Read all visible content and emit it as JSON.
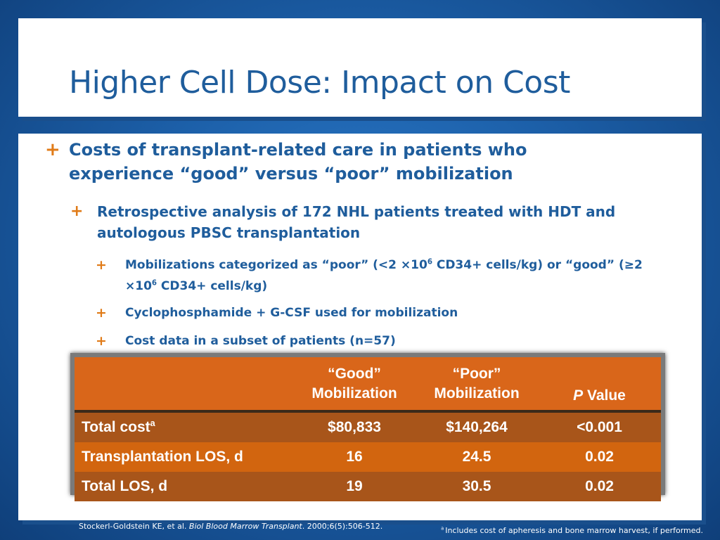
{
  "title": "Higher Cell Dose: Impact on Cost",
  "bullets": {
    "level1": "Costs of transplant-related care in patients who experience “good” versus “poor” mobilization",
    "level2": "Retrospective analysis of 172 NHL patients treated with HDT and autologous PBSC transplantation",
    "level3": {
      "mobilization_pre": "Mobilizations categorized as “poor” (<2 ×10",
      "mobilization_exp1": "6",
      "mobilization_mid": " CD34+ cells/kg)  or “good” (≥2 ×10",
      "mobilization_exp2": "6",
      "mobilization_post": " CD34+ cells/kg)",
      "cyclophosphamide": "Cyclophosphamide + G-CSF used for mobilization",
      "cost_subset": "Cost data in a subset of patients (n=57)"
    }
  },
  "table": {
    "headers": {
      "good_line1": "“Good”",
      "good_line2": "Mobilization",
      "poor_line1": "“Poor”",
      "poor_line2": "Mobilization",
      "p_italic": "P",
      "p_rest": " Value"
    },
    "rows": [
      {
        "label": "Total cost",
        "label_sup": "a",
        "good": "$80,833",
        "poor": "$140,264",
        "p": "<0.001"
      },
      {
        "label": "Transplantation LOS, d",
        "label_sup": "",
        "good": "16",
        "poor": "24.5",
        "p": "0.02"
      },
      {
        "label": "Total LOS, d",
        "label_sup": "",
        "good": "19",
        "poor": "30.5",
        "p": "0.02"
      }
    ]
  },
  "footer": {
    "citation_pre": "Stockerl-Goldstein KE, et al. ",
    "citation_journal": "Biol Blood Marrow Transplant",
    "citation_post": ". 2000;6(5):506-512.",
    "footnote_sup": "a ",
    "footnote_text": "Includes cost of apheresis and bone marrow harvest, if performed."
  },
  "colors": {
    "accent_orange": "#e07b18",
    "title_blue": "#1f5d9c",
    "table_header": "#d9661a",
    "table_row_dark": "#a8551a",
    "table_row_light": "#d2650f"
  }
}
